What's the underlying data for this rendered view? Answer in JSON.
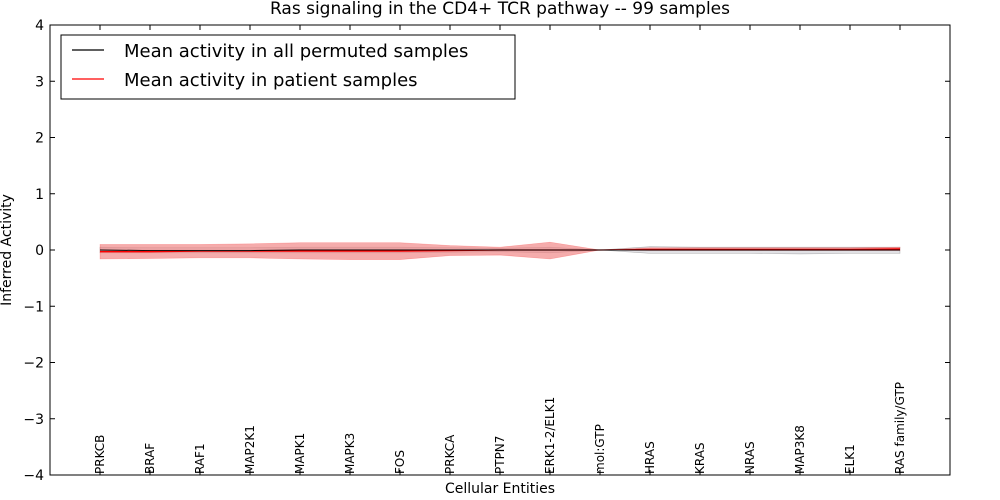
{
  "chart_data": {
    "type": "line",
    "title": "Ras signaling in the CD4+ TCR pathway -- 99 samples",
    "xlabel": "Cellular Entities",
    "ylabel": "Inferred Activity",
    "ylim": [
      -4,
      4
    ],
    "yticks": [
      "4",
      "3",
      "2",
      "1",
      "0",
      "−1",
      "−2",
      "−3",
      "−4"
    ],
    "ytick_values": [
      4,
      3,
      2,
      1,
      0,
      -1,
      -2,
      -3,
      -4
    ],
    "categories": [
      "PRKCB",
      "BRAF",
      "RAF1",
      "MAP2K1",
      "MAPK1",
      "MAPK3",
      "FOS",
      "PRKCA",
      "PTPN7",
      "ERK1-2/ELK1",
      "mol:GTP",
      "HRAS",
      "KRAS",
      "NRAS",
      "MAP3K8",
      "ELK1",
      "RAS family/GTP"
    ],
    "legend_position": "top-left",
    "series": [
      {
        "name": "Mean activity in all permuted samples",
        "color": "#000000",
        "values": [
          0.0,
          -0.01,
          -0.01,
          -0.01,
          0.0,
          0.0,
          0.0,
          0.0,
          0.0,
          0.0,
          0.0,
          0.0,
          0.0,
          0.0,
          0.0,
          0.0,
          0.0
        ],
        "band_upper": [
          0.05,
          0.04,
          0.04,
          0.04,
          0.05,
          0.05,
          0.05,
          0.04,
          0.03,
          0.05,
          0.0,
          0.06,
          0.05,
          0.05,
          0.05,
          0.05,
          0.05
        ],
        "band_lower": [
          -0.05,
          -0.05,
          -0.05,
          -0.05,
          -0.05,
          -0.05,
          -0.05,
          -0.04,
          -0.03,
          -0.05,
          0.0,
          -0.06,
          -0.06,
          -0.06,
          -0.07,
          -0.06,
          -0.06
        ],
        "band_color": "#c8c8d0"
      },
      {
        "name": "Mean activity in patient samples",
        "color": "#ff0000",
        "values": [
          -0.03,
          -0.03,
          -0.02,
          -0.02,
          -0.02,
          -0.02,
          -0.02,
          -0.01,
          0.0,
          0.0,
          0.0,
          0.01,
          0.01,
          0.01,
          0.01,
          0.01,
          0.02
        ],
        "band_upper": [
          0.1,
          0.1,
          0.1,
          0.11,
          0.13,
          0.13,
          0.13,
          0.08,
          0.05,
          0.14,
          0.0,
          0.04,
          0.04,
          0.04,
          0.04,
          0.04,
          0.05
        ],
        "band_lower": [
          -0.16,
          -0.15,
          -0.14,
          -0.14,
          -0.16,
          -0.17,
          -0.17,
          -0.1,
          -0.09,
          -0.16,
          0.0,
          -0.01,
          -0.01,
          -0.01,
          -0.01,
          -0.01,
          -0.01
        ],
        "band_color": "#f08080"
      }
    ]
  }
}
